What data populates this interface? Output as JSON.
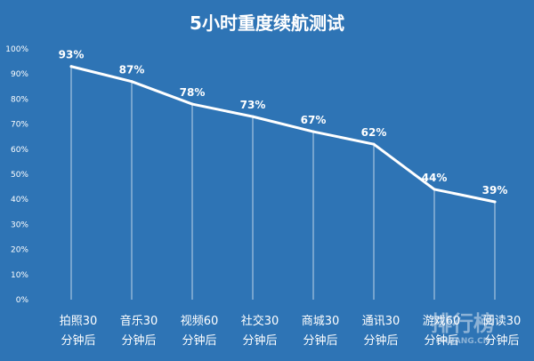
{
  "chart_data": {
    "type": "line",
    "title": "5小时重度续航测试",
    "xlabel": "",
    "ylabel": "",
    "categories": [
      [
        "拍照30",
        "分钟后"
      ],
      [
        "音乐30",
        "分钟后"
      ],
      [
        "视频60",
        "分钟后"
      ],
      [
        "社交30",
        "分钟后"
      ],
      [
        "商城30",
        "分钟后"
      ],
      [
        "通讯30",
        "分钟后"
      ],
      [
        "游戏60",
        "分钟后"
      ],
      [
        "阅读30",
        "分钟后"
      ]
    ],
    "series": [
      {
        "values": [
          93,
          87,
          78,
          73,
          67,
          62,
          44,
          39
        ],
        "labels": [
          "93%",
          "87%",
          "78%",
          "73%",
          "67%",
          "62%",
          "44%",
          "39%"
        ]
      }
    ],
    "ylim": [
      0,
      100
    ],
    "yticks": [
      "0%",
      "10%",
      "20%",
      "30%",
      "40%",
      "50%",
      "60%",
      "70%",
      "80%",
      "90%",
      "100%"
    ],
    "grid": false,
    "drop_lines": true,
    "watermark": {
      "text": "排行榜",
      "subtext": "PHBANG.CN"
    },
    "colors": {
      "background": "#2e74b5",
      "line": "#ffffff",
      "text": "#ffffff",
      "drop_line": "#d6e4f2"
    }
  }
}
